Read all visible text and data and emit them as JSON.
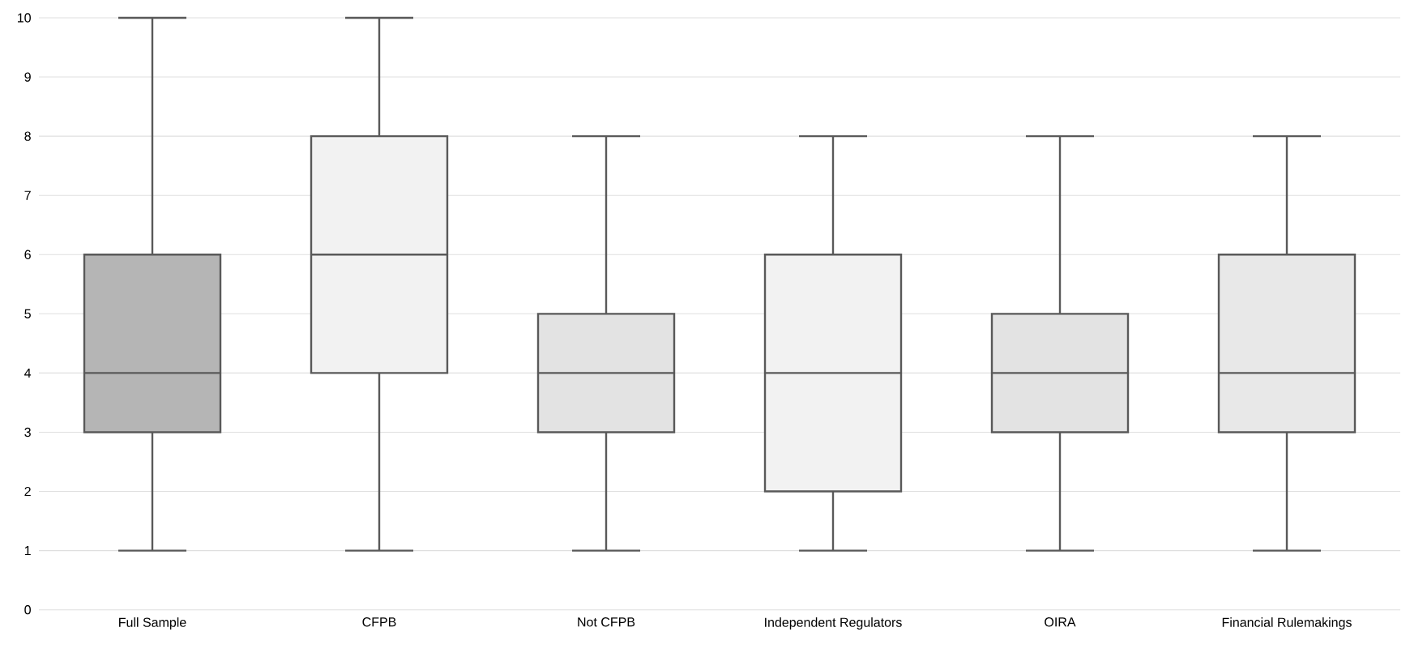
{
  "chart_data": {
    "type": "box",
    "categories": [
      "Full Sample",
      "CFPB",
      "Not CFPB",
      "Independent Regulators",
      "OIRA",
      "Financial Rulemakings"
    ],
    "boxes": [
      {
        "low": 1,
        "q1": 3,
        "median": 4,
        "q3": 6,
        "high": 10
      },
      {
        "low": 1,
        "q1": 4,
        "median": 6,
        "q3": 8,
        "high": 10
      },
      {
        "low": 1,
        "q1": 3,
        "median": 4,
        "q3": 5,
        "high": 8
      },
      {
        "low": 1,
        "q1": 2,
        "median": 4,
        "q3": 6,
        "high": 8
      },
      {
        "low": 1,
        "q1": 3,
        "median": 4,
        "q3": 5,
        "high": 8
      },
      {
        "low": 1,
        "q1": 3,
        "median": 4,
        "q3": 6,
        "high": 8
      }
    ],
    "colors": [
      "#b5b5b5",
      "#f2f2f2",
      "#e3e3e3",
      "#f2f2f2",
      "#e3e3e3",
      "#e8e8e8"
    ],
    "ylim": [
      0,
      10
    ],
    "yticks": [
      0,
      1,
      2,
      3,
      4,
      5,
      6,
      7,
      8,
      9,
      10
    ],
    "grid": "y"
  }
}
